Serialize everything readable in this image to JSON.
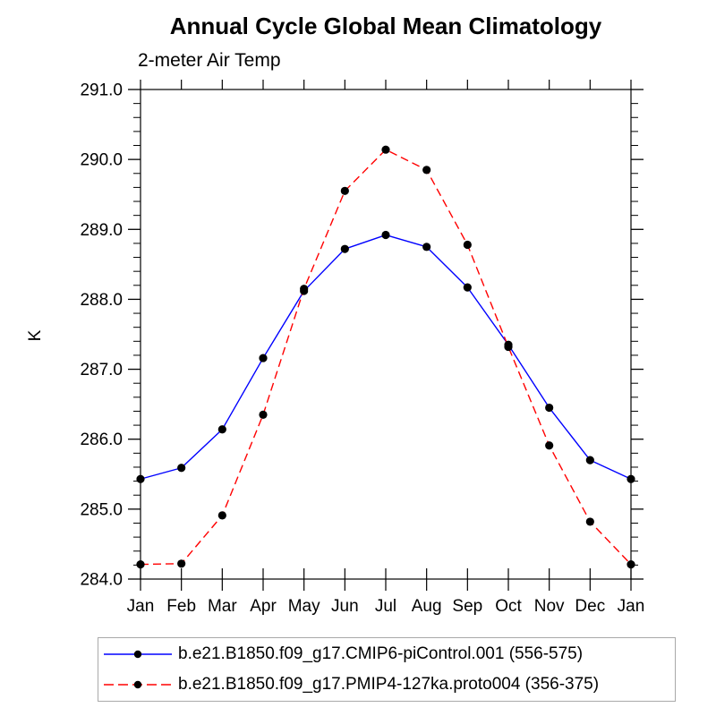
{
  "header": {
    "title": "Annual Cycle Global Mean Climatology",
    "subtitle": "2-meter Air Temp"
  },
  "chart_data": {
    "type": "line",
    "title": "Annual Cycle Global Mean Climatology",
    "subtitle": "2-meter Air Temp",
    "xlabel": "",
    "ylabel": "K",
    "categories": [
      "Jan",
      "Feb",
      "Mar",
      "Apr",
      "May",
      "Jun",
      "Jul",
      "Aug",
      "Sep",
      "Oct",
      "Nov",
      "Dec",
      "Jan"
    ],
    "ylim": [
      284.0,
      291.0
    ],
    "ytick_major": 1.0,
    "ytick_minor": 0.2,
    "ytick_labels": [
      "284.0",
      "285.0",
      "286.0",
      "287.0",
      "288.0",
      "289.0",
      "290.0",
      "291.0"
    ],
    "grid": false,
    "legend_position": "bottom",
    "marker": "filled-circle",
    "marker_color": "#000000",
    "series": [
      {
        "name": "b.e21.B1850.f09_g17.CMIP6-piControl.001 (556-575)",
        "color": "#0000ff",
        "line_style": "solid",
        "values": [
          285.43,
          285.59,
          286.14,
          287.16,
          288.12,
          288.72,
          288.92,
          288.75,
          288.17,
          287.35,
          286.45,
          285.7,
          285.43
        ]
      },
      {
        "name": "b.e21.B1850.f09_g17.PMIP4-127ka.proto004 (356-375)",
        "color": "#ff0000",
        "line_style": "dashed",
        "values": [
          284.21,
          284.22,
          284.91,
          286.35,
          288.15,
          289.55,
          290.14,
          289.85,
          288.78,
          287.32,
          285.91,
          284.82,
          284.21
        ]
      }
    ]
  },
  "colors": {
    "axis": "#000000",
    "background": "#ffffff",
    "legend_border": "#a9a9a9"
  }
}
